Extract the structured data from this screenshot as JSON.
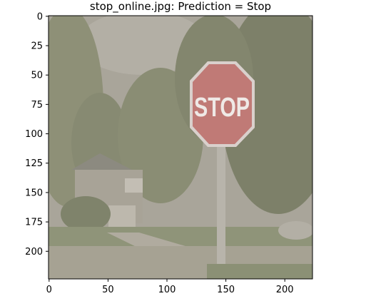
{
  "chart_data": {
    "type": "image",
    "title": "stop_online.jpg: Prediction = Stop",
    "xlim": [
      -0.5,
      223.5
    ],
    "ylim": [
      223.5,
      -0.5
    ],
    "xticks": [
      0,
      50,
      100,
      150,
      200
    ],
    "yticks": [
      0,
      25,
      50,
      75,
      100,
      125,
      150,
      175,
      200
    ],
    "sign_text": "STOP",
    "colors": {
      "sky": "#a9a59a",
      "foliage": "#8e9077",
      "foliage_dark": "#7d8069",
      "road": "#a6a293",
      "lawn": "#8f9479",
      "house": "#a8a397",
      "sign_red": "#c07a76",
      "sign_border": "#d9d0cc",
      "pole": "#b8b4ab"
    }
  }
}
